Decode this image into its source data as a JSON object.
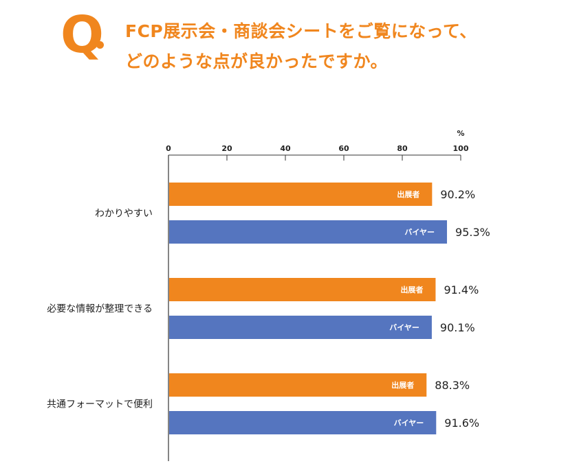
{
  "question": {
    "mark": "Q",
    "line1": "FCP展示会・商談会シートをご覧になって、",
    "line2": "どのような点が良かったですか。"
  },
  "colors": {
    "accent": "#f0861e",
    "exhibitor": "#f0861e",
    "buyer": "#5575bf"
  },
  "chart_data": {
    "type": "bar",
    "orientation": "horizontal",
    "unit": "%",
    "xlim": [
      0,
      100
    ],
    "ticks": [
      0,
      20,
      40,
      60,
      80,
      100
    ],
    "categories": [
      "わかりやすい",
      "必要な情報が整理できる",
      "共通フォーマットで便利"
    ],
    "series": [
      {
        "name": "出展者",
        "values": [
          90.2,
          91.4,
          88.3
        ]
      },
      {
        "name": "バイヤー",
        "values": [
          95.3,
          90.1,
          91.6
        ]
      }
    ],
    "value_labels": [
      [
        "90.2%",
        "91.4%",
        "88.3%"
      ],
      [
        "95.3%",
        "90.1%",
        "91.6%"
      ]
    ]
  }
}
